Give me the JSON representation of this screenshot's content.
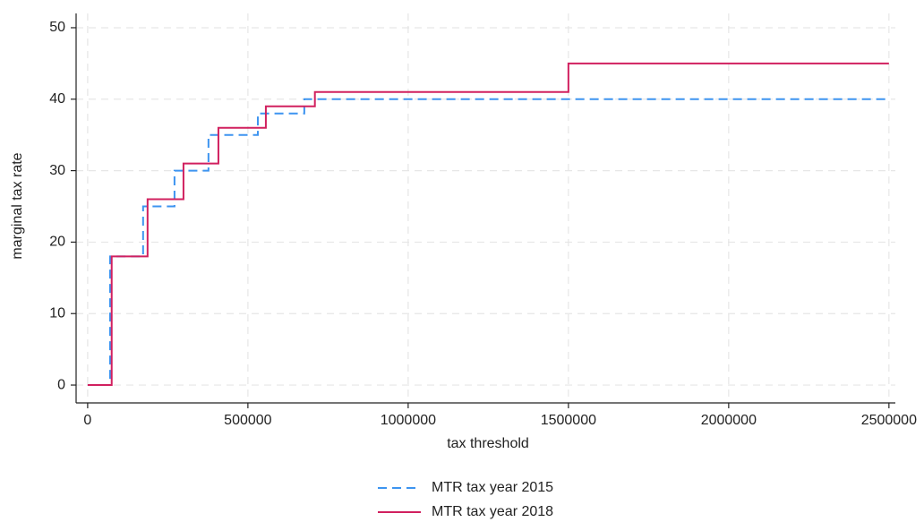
{
  "chart_data": {
    "type": "line",
    "x_label": "tax threshold",
    "y_label": "marginal tax rate",
    "series": [
      {
        "name": "MTR tax year 2015",
        "color": "#3d94f0",
        "dashed": true,
        "x": [
          0,
          70000,
          70000,
          173000,
          173000,
          271000,
          271000,
          377000,
          377000,
          531000,
          531000,
          676000,
          676000,
          2500000
        ],
        "values": [
          0,
          0,
          18,
          18,
          25,
          25,
          30,
          30,
          35,
          35,
          38,
          38,
          40,
          40
        ]
      },
      {
        "name": "MTR tax year 2018",
        "color": "#d1205f",
        "dashed": false,
        "x": [
          0,
          75000,
          75000,
          187000,
          187000,
          299000,
          299000,
          408000,
          408000,
          556000,
          556000,
          709000,
          709000,
          1500000,
          1500000,
          2500000
        ],
        "values": [
          0,
          0,
          18,
          18,
          26,
          26,
          31,
          31,
          36,
          36,
          39,
          39,
          41,
          41,
          45,
          45
        ]
      }
    ],
    "xlim": [
      -36000,
      2520000
    ],
    "ylim": [
      -2.5,
      52
    ],
    "xticks": [
      0,
      500000,
      1000000,
      1500000,
      2000000,
      2500000
    ],
    "yticks": [
      0,
      10,
      20,
      30,
      40,
      50
    ],
    "grid": true,
    "legend": "bottom"
  }
}
